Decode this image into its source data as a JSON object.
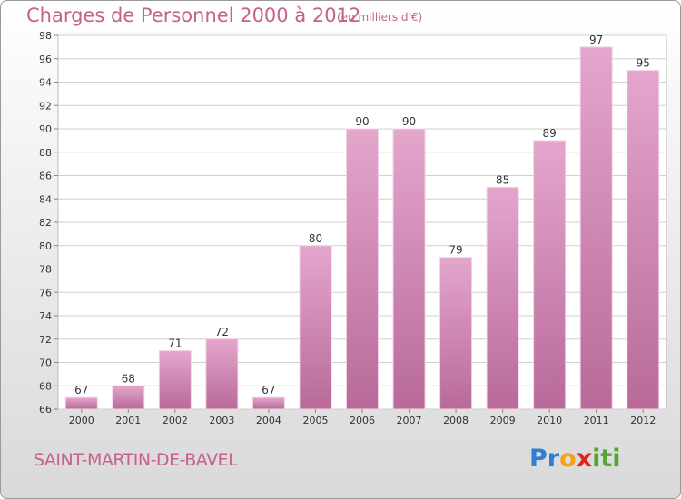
{
  "title": "Charges de Personnel 2000 à 2012",
  "subtitle": "(en milliers d'€)",
  "commune": "SAINT-MARTIN-DE-BAVEL",
  "logo": {
    "letters": [
      "P",
      "r",
      "o",
      "x",
      "i",
      "t",
      "i"
    ],
    "colors": [
      "#2f7fd0",
      "#2f7fd0",
      "#f2a21b",
      "#e2231a",
      "#55a630",
      "#55a630",
      "#55a630"
    ]
  },
  "colors": {
    "bar_top": "#e4a6cd",
    "bar_bottom": "#b86a98",
    "text": "#c8608f",
    "grid": "#cfcfcf"
  },
  "chart_data": {
    "type": "bar",
    "title": "Charges de Personnel 2000 à 2012",
    "subtitle": "(en milliers d'€)",
    "categories": [
      "2000",
      "2001",
      "2002",
      "2003",
      "2004",
      "2005",
      "2006",
      "2007",
      "2008",
      "2009",
      "2010",
      "2011",
      "2012"
    ],
    "values": [
      67,
      68,
      71,
      72,
      67,
      80,
      90,
      90,
      79,
      85,
      89,
      97,
      95
    ],
    "ylim": [
      66,
      98
    ],
    "yticks": [
      66,
      68,
      70,
      72,
      74,
      76,
      78,
      80,
      82,
      84,
      86,
      88,
      90,
      92,
      94,
      96,
      98
    ],
    "grid": true,
    "xlabel": "",
    "ylabel": ""
  }
}
